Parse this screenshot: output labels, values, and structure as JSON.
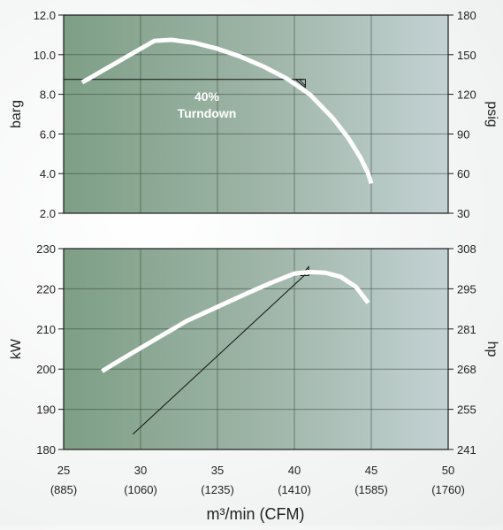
{
  "chart_data": [
    {
      "type": "line",
      "title": "",
      "ylabel": "barg",
      "y2label": "psig",
      "xlim": [
        25,
        50
      ],
      "ylim": [
        2.0,
        12.0
      ],
      "y2lim": [
        30,
        180
      ],
      "grid": true,
      "xticks": [
        25,
        30,
        35,
        40,
        45,
        50
      ],
      "yticks": [
        "2.0",
        "4.0",
        "6.0",
        "8.0",
        "10.0",
        "12.0"
      ],
      "y2ticks": [
        "30",
        "60",
        "90",
        "120",
        "150",
        "180"
      ],
      "annotation": {
        "line1": "40%",
        "line2": "Turndown"
      },
      "series": [
        {
          "x": [
            26.2,
            30.9,
            32.0,
            33.5,
            35.0,
            36.5,
            38.0,
            39.5,
            41.0,
            42.5,
            43.5,
            44.3,
            44.8,
            45.0
          ],
          "values": [
            8.6,
            10.7,
            10.75,
            10.6,
            10.3,
            9.9,
            9.4,
            8.8,
            8.0,
            6.8,
            5.8,
            4.8,
            4.0,
            3.5
          ]
        }
      ],
      "reference_line": {
        "x": [
          25,
          40.6
        ],
        "values": [
          8.75,
          8.75
        ]
      }
    },
    {
      "type": "line",
      "title": "",
      "xlabel": "m³/min (CFM)",
      "ylabel": "kW",
      "y2label": "hp",
      "xlim": [
        25,
        50
      ],
      "ylim": [
        180,
        230
      ],
      "y2lim": [
        241,
        308
      ],
      "grid": true,
      "xticks": [
        25,
        30,
        35,
        40,
        45,
        50
      ],
      "xticks_secondary": [
        "(885)",
        "(1060)",
        "(1235)",
        "(1410)",
        "(1585)",
        "(1760)"
      ],
      "yticks": [
        "180",
        "190",
        "200",
        "210",
        "220",
        "230"
      ],
      "y2ticks": [
        "241",
        "255",
        "268",
        "281",
        "295",
        "308"
      ],
      "series": [
        {
          "x": [
            27.5,
            29.0,
            31.0,
            33.0,
            35.0,
            37.0,
            38.5,
            40.0,
            41.0,
            42.0,
            43.0,
            44.0,
            44.8
          ],
          "values": [
            199.5,
            203.0,
            207.5,
            212.0,
            215.5,
            219.0,
            221.5,
            223.8,
            224.2,
            224.0,
            223.0,
            220.5,
            216.5
          ]
        }
      ],
      "reference_line": {
        "x": [
          29.5,
          40.7
        ],
        "values": [
          183.8,
          223.5
        ]
      }
    }
  ]
}
